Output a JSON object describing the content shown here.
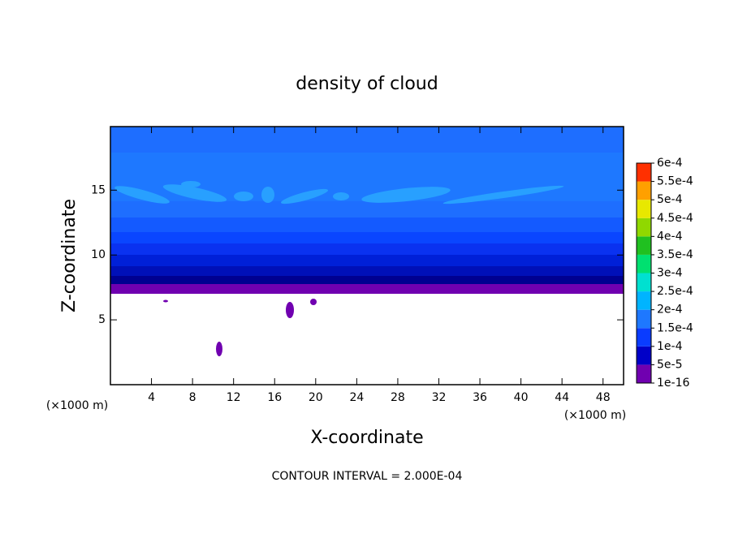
{
  "chart_data": {
    "type": "contour",
    "title": "density of cloud",
    "x_label": "X-coordinate",
    "y_label": "Z-coordinate",
    "y_unit": "(×1000 m)",
    "x_unit": "(×1000 m)",
    "footer": "CONTOUR INTERVAL = 2.000E-04",
    "xlim": [
      0,
      50
    ],
    "ylim": [
      0,
      19.9
    ],
    "xticks": [
      4,
      8,
      12,
      16,
      20,
      24,
      28,
      32,
      36,
      40,
      44,
      48
    ],
    "yticks": [
      5,
      10,
      15
    ],
    "colorbar": {
      "ticks": [
        {
          "value": 1e-16,
          "label": "1e-16"
        },
        {
          "value": 5e-05,
          "label": "5e-5"
        },
        {
          "value": 0.0001,
          "label": "1e-4"
        },
        {
          "value": 0.00015,
          "label": "1.5e-4"
        },
        {
          "value": 0.0002,
          "label": "2e-4"
        },
        {
          "value": 0.00025,
          "label": "2.5e-4"
        },
        {
          "value": 0.0003,
          "label": "3e-4"
        },
        {
          "value": 0.00035,
          "label": "3.5e-4"
        },
        {
          "value": 0.0004,
          "label": "4e-4"
        },
        {
          "value": 0.00045,
          "label": "4.5e-4"
        },
        {
          "value": 0.0005,
          "label": "5e-4"
        },
        {
          "value": 0.00055,
          "label": "5.5e-4"
        },
        {
          "value": 0.0006,
          "label": "6e-4"
        }
      ],
      "colors": [
        "#7000b0",
        "#0000c8",
        "#0a3cff",
        "#1e78ff",
        "#00b4ff",
        "#00e0d0",
        "#00e070",
        "#20c020",
        "#90d800",
        "#e8e800",
        "#ffa000",
        "#ff3000"
      ]
    }
  }
}
